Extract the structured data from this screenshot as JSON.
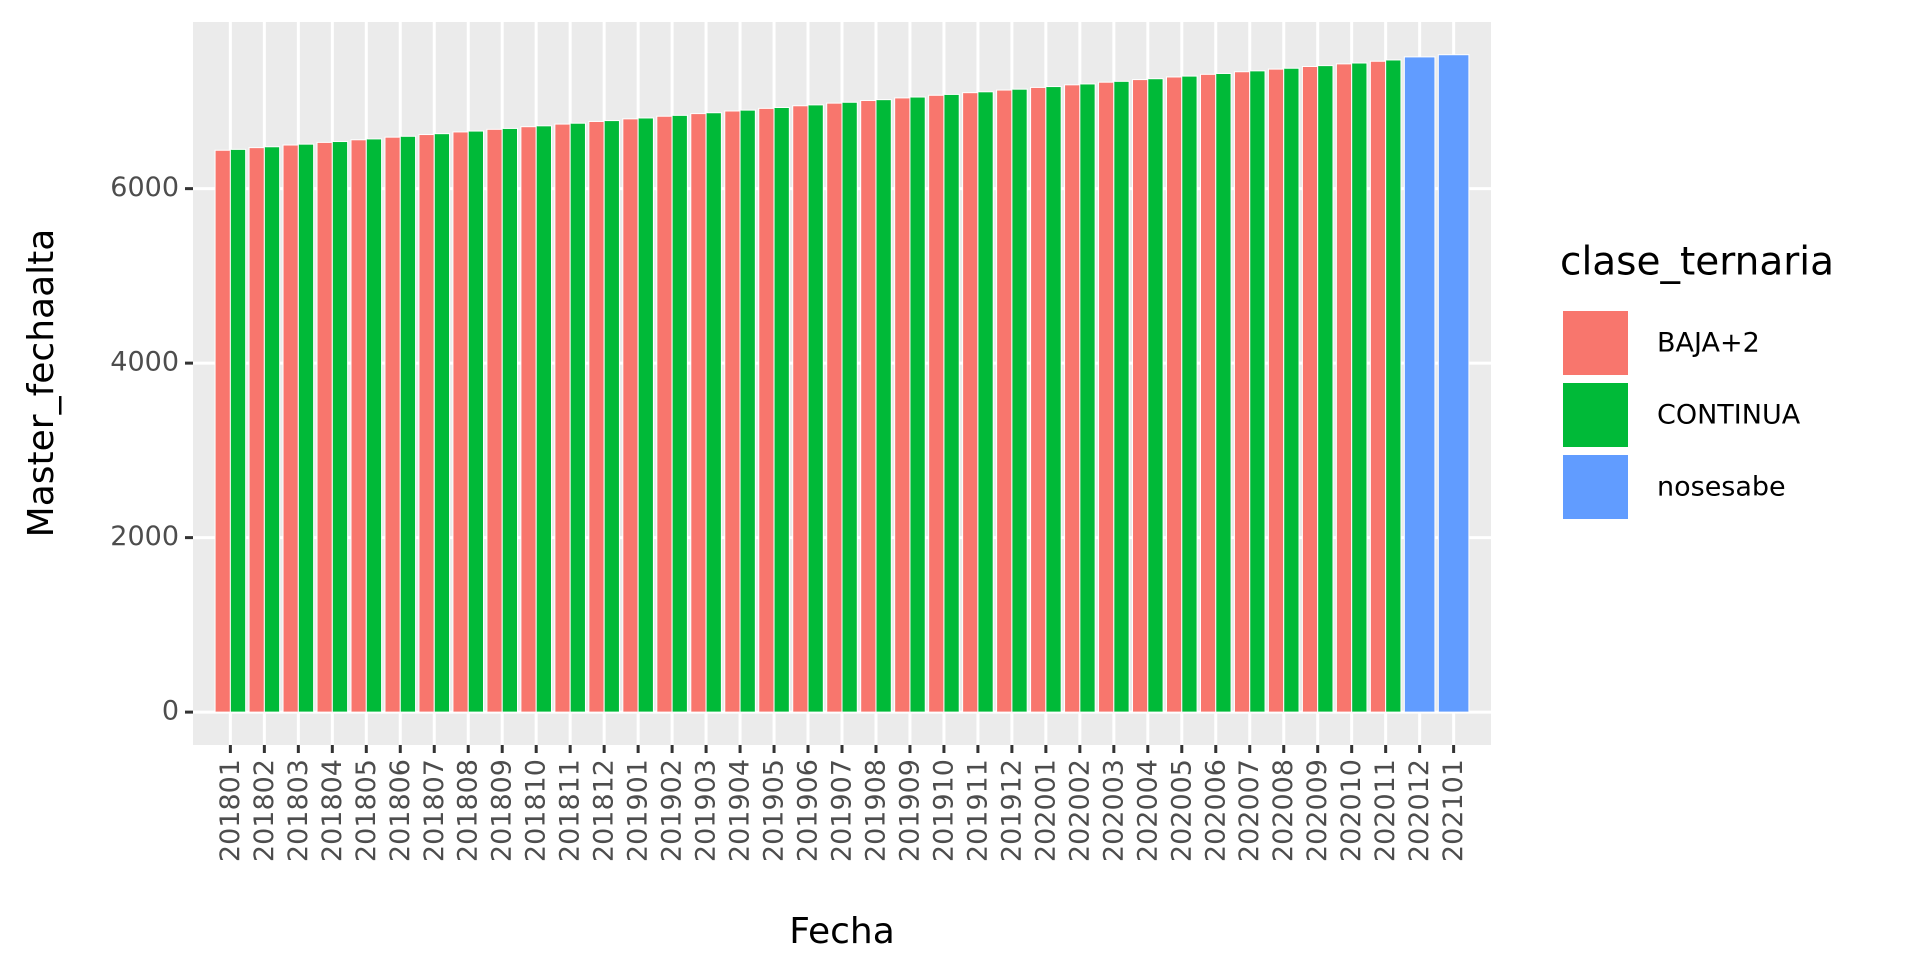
{
  "chart_data": {
    "type": "bar",
    "x_label": "Fecha",
    "y_label": "Master_fechaalta",
    "legend_title": "clase_ternaria",
    "legend_position": "right",
    "grid": true,
    "categories": [
      "201801",
      "201802",
      "201803",
      "201804",
      "201805",
      "201806",
      "201807",
      "201808",
      "201809",
      "201810",
      "201811",
      "201812",
      "201901",
      "201902",
      "201903",
      "201904",
      "201905",
      "201906",
      "201907",
      "201908",
      "201909",
      "201910",
      "201911",
      "201912",
      "202001",
      "202002",
      "202003",
      "202004",
      "202005",
      "202006",
      "202007",
      "202008",
      "202009",
      "202010",
      "202011",
      "202012",
      "202101"
    ],
    "series": [
      {
        "name": "BAJA+2",
        "color": "#F8766D",
        "values": [
          6440,
          6470,
          6500,
          6530,
          6560,
          6590,
          6620,
          6650,
          6680,
          6710,
          6740,
          6770,
          6800,
          6830,
          6860,
          6890,
          6920,
          6950,
          6980,
          7010,
          7040,
          7070,
          7100,
          7130,
          7160,
          7190,
          7220,
          7250,
          7280,
          7310,
          7340,
          7370,
          7400,
          7430,
          7460,
          null,
          null
        ]
      },
      {
        "name": "CONTINUA",
        "color": "#00BA38",
        "values": [
          6450,
          6480,
          6510,
          6540,
          6570,
          6600,
          6630,
          6660,
          6690,
          6720,
          6750,
          6780,
          6810,
          6840,
          6870,
          6900,
          6930,
          6960,
          6990,
          7020,
          7050,
          7080,
          7110,
          7140,
          7170,
          7200,
          7230,
          7260,
          7290,
          7320,
          7350,
          7380,
          7410,
          7440,
          7475,
          null,
          null
        ]
      },
      {
        "name": "nosesabe",
        "color": "#619CFF",
        "values": [
          null,
          null,
          null,
          null,
          null,
          null,
          null,
          null,
          null,
          null,
          null,
          null,
          null,
          null,
          null,
          null,
          null,
          null,
          null,
          null,
          null,
          null,
          null,
          null,
          null,
          null,
          null,
          null,
          null,
          null,
          null,
          null,
          null,
          null,
          null,
          7510,
          7535
        ]
      }
    ],
    "ylim": [
      -377,
      7910
    ],
    "yticks": [
      0,
      2000,
      4000,
      6000
    ]
  }
}
